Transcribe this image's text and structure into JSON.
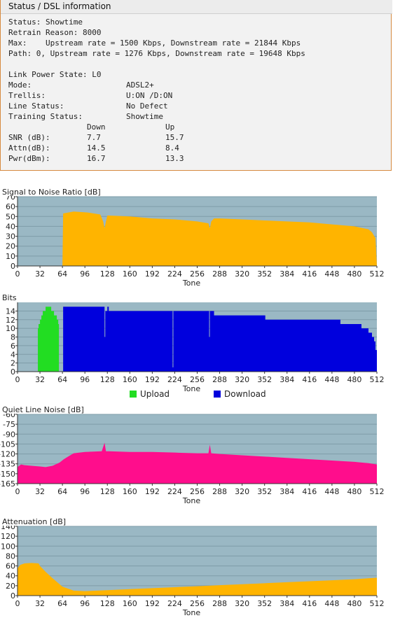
{
  "panel": {
    "title": "Status / DSL information",
    "status": "Status: Showtime",
    "retrain": "Retrain Reason: 8000",
    "max": "Max:    Upstream rate = 1500 Kbps, Downstream rate = 21844 Kbps",
    "path": "Path: 0, Upstream rate = 1276 Kbps, Downstream rate = 19648 Kbps",
    "link_power": "Link Power State: L0",
    "rows": [
      {
        "label": "Mode:",
        "value": "ADSL2+"
      },
      {
        "label": "Trellis:",
        "value": "U:ON /D:ON"
      },
      {
        "label": "Line Status:",
        "value": "No Defect"
      },
      {
        "label": "Training Status:",
        "value": "Showtime"
      }
    ],
    "table_header": {
      "down": "Down",
      "up": "Up"
    },
    "table_rows": [
      {
        "label": "SNR (dB):",
        "down": "7.7",
        "up": "15.7"
      },
      {
        "label": "Attn(dB):",
        "down": "14.5",
        "up": "8.4"
      },
      {
        "label": "Pwr(dBm):",
        "down": "16.7",
        "up": "13.3"
      }
    ]
  },
  "colors": {
    "plot_bg": "#9ab8c4",
    "grid": "#7f9ca8",
    "snr": "#ffb400",
    "upload": "#22dd22",
    "download": "#0000dd",
    "qln": "#ff0d8c",
    "attn": "#ffb400"
  },
  "legend": {
    "upload": "Upload",
    "download": "Download"
  },
  "chart_data": [
    {
      "type": "area",
      "title": "Signal to Noise Ratio [dB]",
      "xlabel": "Tone",
      "xlim": [
        0,
        512
      ],
      "ylim": [
        0,
        70
      ],
      "xticks": [
        0,
        32,
        64,
        96,
        128,
        160,
        192,
        224,
        256,
        288,
        320,
        352,
        384,
        416,
        448,
        480,
        512
      ],
      "yticks": [
        0,
        10,
        20,
        30,
        40,
        50,
        60,
        70
      ],
      "x": [
        64,
        65,
        80,
        100,
        118,
        122,
        124,
        126,
        128,
        160,
        192,
        224,
        256,
        272,
        274,
        276,
        280,
        288,
        320,
        352,
        384,
        416,
        448,
        480,
        500,
        505,
        510,
        512
      ],
      "y": [
        0,
        53,
        55,
        54,
        52,
        45,
        38,
        45,
        51,
        50,
        48,
        47,
        45,
        43,
        38,
        45,
        48,
        48,
        47,
        46,
        45,
        44,
        42,
        40,
        37,
        34,
        28,
        0
      ]
    },
    {
      "type": "bar",
      "title": "Bits",
      "xlabel": "Tone",
      "xlim": [
        0,
        512
      ],
      "ylim": [
        0,
        16
      ],
      "xticks": [
        0,
        32,
        64,
        96,
        128,
        160,
        192,
        224,
        256,
        288,
        320,
        352,
        384,
        416,
        448,
        480,
        512
      ],
      "yticks": [
        0,
        2,
        4,
        6,
        8,
        10,
        12,
        14
      ],
      "series": [
        {
          "name": "Upload",
          "x": [
            29,
            30,
            32,
            34,
            36,
            40,
            44,
            48,
            52,
            56,
            58,
            59
          ],
          "y": [
            10,
            11,
            12,
            13,
            14,
            15,
            15,
            14,
            13,
            12,
            11,
            0
          ]
        },
        {
          "name": "Download",
          "x": [
            64,
            65,
            120,
            124,
            125,
            128,
            130,
            220,
            221,
            222,
            273,
            274,
            275,
            280,
            352,
            353,
            420,
            440,
            460,
            480,
            490,
            500,
            505,
            508,
            510,
            512
          ],
          "y": [
            0,
            15,
            15,
            8,
            14,
            15,
            14,
            14,
            1,
            14,
            8,
            14,
            14,
            13,
            13,
            12,
            12,
            12,
            11,
            11,
            10,
            9,
            8,
            7,
            5,
            0
          ]
        }
      ]
    },
    {
      "type": "area",
      "title": "Quiet Line Noise [dB]",
      "xlabel": "Tone",
      "xlim": [
        0,
        512
      ],
      "ylim": [
        -165,
        -60
      ],
      "xticks": [
        0,
        32,
        64,
        96,
        128,
        160,
        192,
        224,
        256,
        288,
        320,
        352,
        384,
        416,
        448,
        480,
        512
      ],
      "yticks": [
        -165,
        -150,
        -135,
        -120,
        -105,
        -90,
        -75,
        -60
      ],
      "x": [
        0,
        5,
        10,
        20,
        32,
        40,
        50,
        60,
        66,
        72,
        80,
        96,
        120,
        124,
        126,
        130,
        160,
        192,
        224,
        256,
        272,
        274,
        276,
        288,
        320,
        352,
        384,
        416,
        448,
        480,
        500,
        512
      ],
      "y": [
        -140,
        -136,
        -137,
        -138,
        -139,
        -140,
        -138,
        -133,
        -128,
        -124,
        -119,
        -117,
        -116,
        -103,
        -116,
        -116,
        -117,
        -117,
        -118,
        -119,
        -119,
        -106,
        -119,
        -120,
        -122,
        -124,
        -126,
        -128,
        -130,
        -132,
        -134,
        -136
      ]
    },
    {
      "type": "area",
      "title": "Attenuation [dB]",
      "xlabel": "Tone",
      "xlim": [
        0,
        512
      ],
      "ylim": [
        0,
        140
      ],
      "xticks": [
        0,
        32,
        64,
        96,
        128,
        160,
        192,
        224,
        256,
        288,
        320,
        352,
        384,
        416,
        448,
        480,
        512
      ],
      "yticks": [
        0,
        20,
        40,
        60,
        80,
        100,
        120,
        140
      ],
      "x": [
        0,
        4,
        10,
        20,
        30,
        32,
        40,
        50,
        64,
        80,
        96,
        128,
        160,
        192,
        224,
        256,
        288,
        320,
        352,
        384,
        416,
        448,
        480,
        500,
        512
      ],
      "y": [
        55,
        62,
        65,
        66,
        65,
        60,
        48,
        35,
        18,
        10,
        9,
        11,
        13,
        15,
        17,
        19,
        21,
        23,
        25,
        27,
        29,
        31,
        33,
        35,
        36
      ]
    }
  ]
}
